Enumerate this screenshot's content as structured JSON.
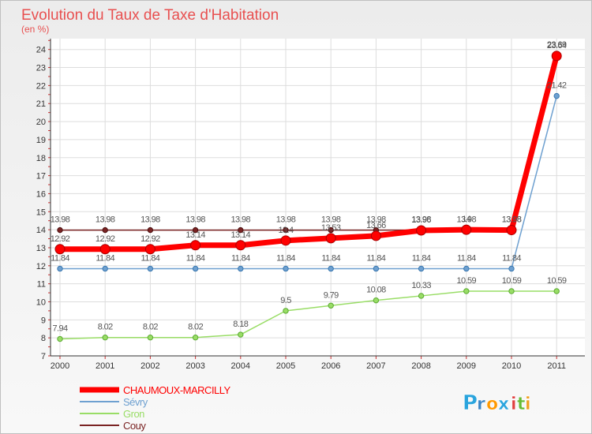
{
  "chart_data": {
    "type": "line",
    "title": "Evolution du Taux de Taxe d'Habitation",
    "subtitle": "(en %)",
    "xlabel": "",
    "ylabel": "(en %)",
    "categories": [
      "2000",
      "2001",
      "2002",
      "2003",
      "2004",
      "2005",
      "2006",
      "2007",
      "2008",
      "2009",
      "2010",
      "2011"
    ],
    "ylim": [
      7,
      24.6
    ],
    "yticks": [
      "7",
      "8",
      "9",
      "10",
      "11",
      "12",
      "13",
      "14",
      "15",
      "16",
      "17",
      "18",
      "19",
      "20",
      "21",
      "22",
      "23",
      "24"
    ],
    "grid": true,
    "legend_position": "bottom-left",
    "series": [
      {
        "name": "CHAUMOUX-MARCILLY",
        "color": "#ff0000",
        "values": [
          12.92,
          12.92,
          12.92,
          13.14,
          13.14,
          13.4,
          13.53,
          13.66,
          13.96,
          14.0,
          13.98,
          23.64
        ],
        "labels": [
          "12.92",
          "12.92",
          "12.92",
          "13.14",
          "13.14",
          "13.4",
          "13.53",
          "13.66",
          "13.96",
          "14",
          "13.98",
          "23.64"
        ]
      },
      {
        "name": "Sévry",
        "color": "#6ea0d0",
        "values": [
          11.84,
          11.84,
          11.84,
          11.84,
          11.84,
          11.84,
          11.84,
          11.84,
          11.84,
          11.84,
          11.84,
          21.42
        ],
        "labels": [
          "11.84",
          "11.84",
          "11.84",
          "11.84",
          "11.84",
          "11.84",
          "11.84",
          "11.84",
          "11.84",
          "11.84",
          "11.84",
          "21.42"
        ]
      },
      {
        "name": "Gron",
        "color": "#99dd66",
        "values": [
          7.94,
          8.02,
          8.02,
          8.02,
          8.18,
          9.5,
          9.79,
          10.08,
          10.33,
          10.59,
          10.59,
          10.59
        ],
        "labels": [
          "7.94",
          "8.02",
          "8.02",
          "8.02",
          "8.18",
          "9.5",
          "9.79",
          "10.08",
          "10.33",
          "10.59",
          "10.59",
          "10.59"
        ]
      },
      {
        "name": "Couy",
        "color": "#7a2323",
        "values": [
          13.98,
          13.98,
          13.98,
          13.98,
          13.98,
          13.98,
          13.98,
          13.98,
          13.98,
          13.98,
          13.98,
          23.69
        ],
        "labels": [
          "13.98",
          "13.98",
          "13.98",
          "13.98",
          "13.98",
          "13.98",
          "13.98",
          "13.98",
          "13.98",
          "13.98",
          "13.98",
          "23.69"
        ]
      }
    ]
  },
  "brand": {
    "logo_letters": [
      "P",
      "r",
      "o",
      "x",
      "i",
      "t",
      "i"
    ],
    "logo_colors": [
      "#2aa4dd",
      "#3b84c4",
      "#ff9900",
      "#2aa4dd",
      "#e04040",
      "#66bb33",
      "#f0a020"
    ]
  }
}
